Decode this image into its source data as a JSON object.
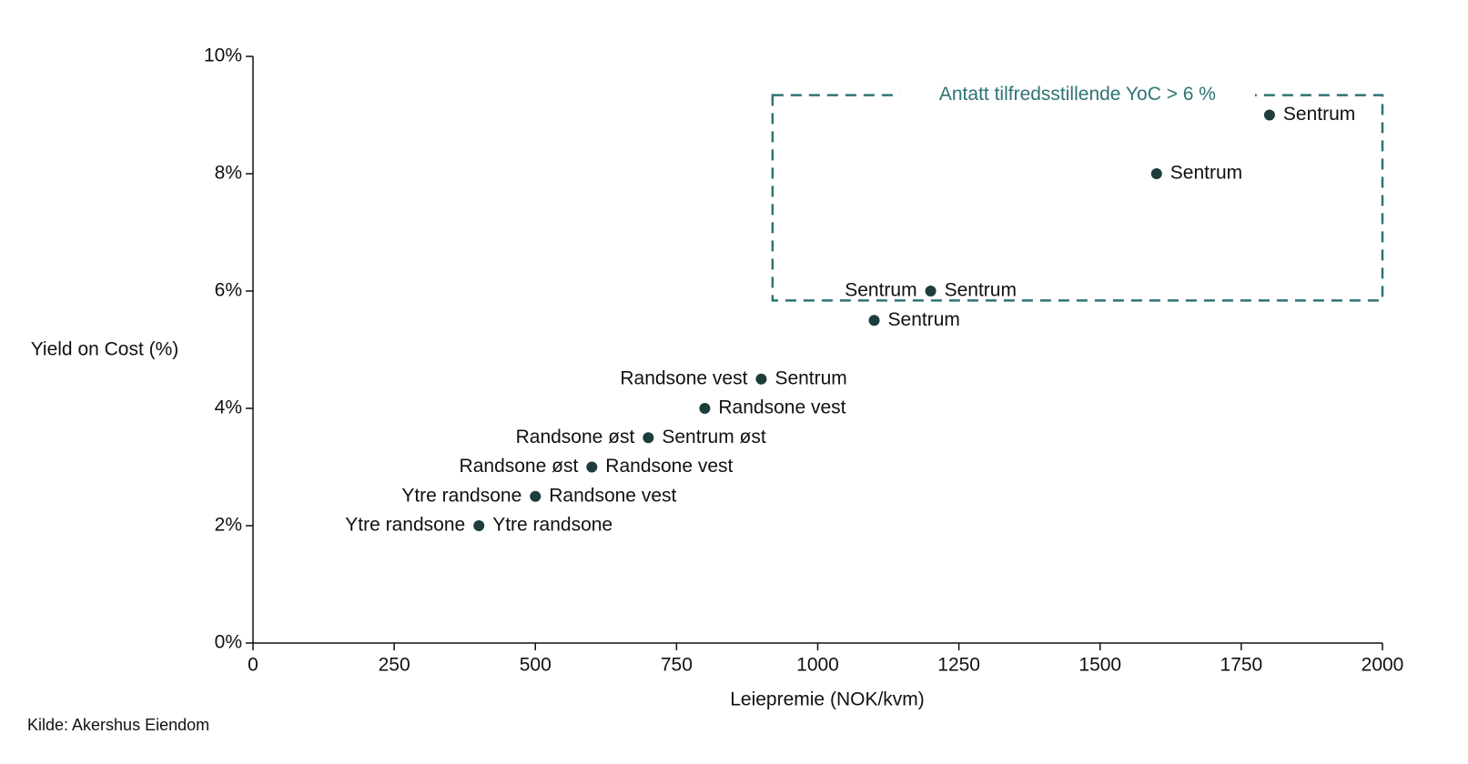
{
  "chart_data": {
    "type": "scatter",
    "x_label": "Leiepremie (NOK/kvm)",
    "y_label": "Yield on Cost (%)",
    "source": "Kilde: Akershus Eiendom",
    "xlim": [
      0,
      2000
    ],
    "xticks": [
      0,
      250,
      500,
      750,
      1000,
      1250,
      1500,
      1750,
      2000
    ],
    "ylim": [
      0,
      10
    ],
    "yticks": [
      {
        "value": 0,
        "label": "0%"
      },
      {
        "value": 2,
        "label": "2%"
      },
      {
        "value": 4,
        "label": "4%"
      },
      {
        "value": 6,
        "label": "6%"
      },
      {
        "value": 8,
        "label": "8%"
      },
      {
        "value": 10,
        "label": "10%"
      }
    ],
    "grid": false,
    "color": "#1d3c3c",
    "x": [
      400,
      500,
      600,
      700,
      800,
      900,
      1100,
      1200,
      1600,
      1800
    ],
    "values": [
      2,
      2.5,
      3,
      3.5,
      4,
      4.5,
      5.5,
      6,
      8,
      9
    ],
    "labels_left": [
      "Ytre randsone",
      "Ytre randsone",
      "Randsone øst",
      "Randsone øst",
      null,
      "Randsone vest",
      null,
      "Sentrum",
      null,
      null
    ],
    "labels_right": [
      "Ytre randsone",
      "Randsone vest",
      "Randsone vest",
      "Sentrum øst",
      "Randsone vest",
      "Sentrum",
      "Sentrum",
      "Sentrum",
      "Sentrum",
      "Sentrum"
    ],
    "annotation": {
      "text": "Antatt tilfredsstillende YoC > 6 %",
      "color": "#2e7372",
      "xlim": [
        920,
        2000
      ],
      "ylim": [
        5.84,
        9.34
      ]
    }
  }
}
